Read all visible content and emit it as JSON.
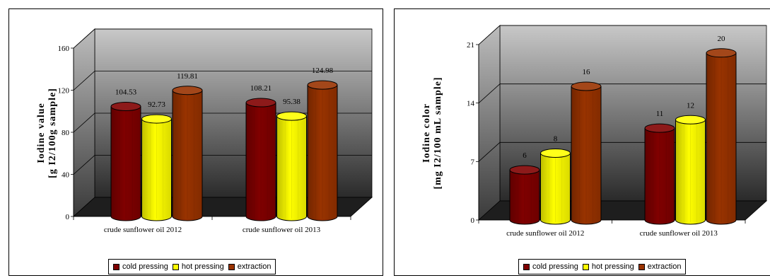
{
  "series_meta": [
    {
      "name": "cold pressing",
      "color": "#800000"
    },
    {
      "name": "hot pressing",
      "color": "#ffff00"
    },
    {
      "name": "extraction",
      "color": "#993300"
    }
  ],
  "chart_data": [
    {
      "type": "bar",
      "ylabel_line1": "Iodine value",
      "ylabel_line2": "[g I2/100g sample]",
      "categories": [
        "crude sunflower oil 2012",
        "crude sunflower oil 2013"
      ],
      "yticks": [
        "0",
        "40",
        "80",
        "120",
        "160"
      ],
      "ylim": [
        0,
        160
      ],
      "series": [
        {
          "name": "cold pressing",
          "values": [
            104.53,
            108.21
          ],
          "labels": [
            "104.53",
            "108.21"
          ]
        },
        {
          "name": "hot pressing",
          "values": [
            92.73,
            95.38
          ],
          "labels": [
            "92.73",
            "95.38"
          ]
        },
        {
          "name": "extraction",
          "values": [
            119.81,
            124.98
          ],
          "labels": [
            "119.81",
            "124.98"
          ]
        }
      ],
      "grid": true,
      "legend_position": "bottom"
    },
    {
      "type": "bar",
      "ylabel_line1": "Iodine color",
      "ylabel_line2": "[mg I2/100 mL sample]",
      "categories": [
        "crude sunflower oil 2012",
        "crude sunflower oil 2013"
      ],
      "yticks": [
        "0",
        "7",
        "14",
        "21"
      ],
      "ylim": [
        0,
        21
      ],
      "series": [
        {
          "name": "cold pressing",
          "values": [
            6,
            11
          ],
          "labels": [
            "6",
            "11"
          ]
        },
        {
          "name": "hot pressing",
          "values": [
            8,
            12
          ],
          "labels": [
            "8",
            "12"
          ]
        },
        {
          "name": "extraction",
          "values": [
            16,
            20
          ],
          "labels": [
            "16",
            "20"
          ]
        }
      ],
      "grid": true,
      "legend_position": "bottom"
    }
  ]
}
